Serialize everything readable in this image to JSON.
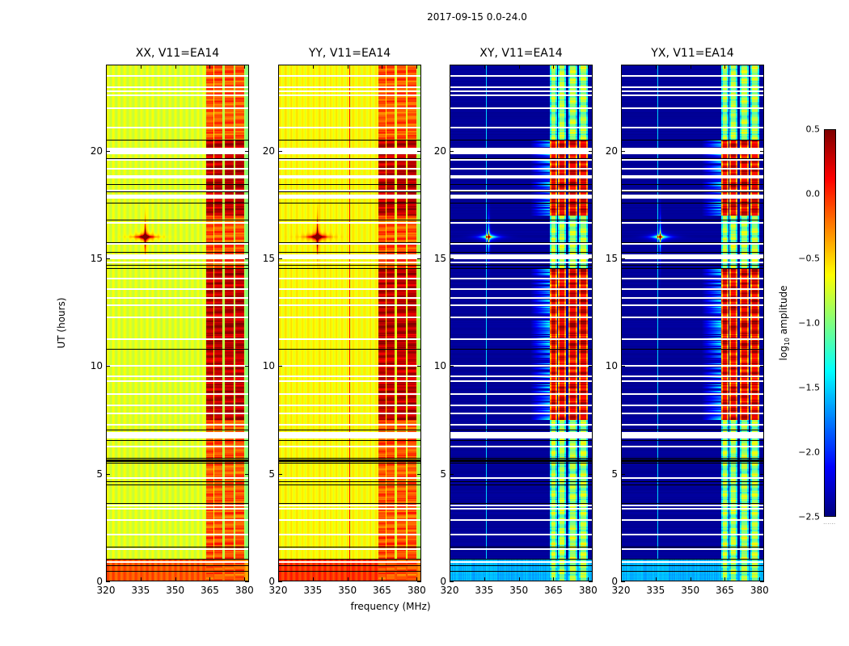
{
  "chart_data": {
    "type": "heatmap",
    "title": "2017-09-15 0.0-24.0",
    "xlabel": "frequency (MHz)",
    "ylabel": "UT (hours)",
    "xlim": [
      320,
      382
    ],
    "ylim": [
      0,
      24
    ],
    "xticks": [
      320,
      335,
      350,
      365,
      380
    ],
    "yticks": [
      0,
      5,
      10,
      15,
      20
    ],
    "colorbar": {
      "label": "log10 amplitude",
      "label_main": "log",
      "label_sub": "10",
      "label_rest": " amplitude",
      "range": [
        -2.5,
        0.5
      ],
      "ticks": [
        0.5,
        0.0,
        -0.5,
        -1.0,
        -1.5,
        -2.0,
        -2.5
      ],
      "tick_labels": [
        "0.5",
        "0.0",
        "−0.5",
        "−1.0",
        "−1.5",
        "−2.0",
        "−2.5"
      ],
      "colormap": "jet",
      "dots": "......"
    },
    "panels": [
      {
        "title": "XX, V11=EA14",
        "pol": "XX",
        "type": "parallel",
        "baseline_level": -0.75,
        "rfi_line_mhz": null
      },
      {
        "title": "YY, V11=EA14",
        "pol": "YY",
        "type": "parallel",
        "baseline_level": -0.65,
        "rfi_line_mhz": 351
      },
      {
        "title": "XY, V11=EA14",
        "pol": "XY",
        "type": "cross",
        "baseline_level": -2.45,
        "rfi_line_mhz": 336
      },
      {
        "title": "YX, V11=EA14",
        "pol": "YX",
        "type": "cross",
        "baseline_level": -2.45,
        "rfi_line_mhz": 336
      }
    ],
    "rfi_bands_mhz": [
      [
        363.5,
        366.5
      ],
      [
        366.8,
        370.5
      ],
      [
        371.5,
        375.5
      ],
      [
        376.0,
        379.8
      ]
    ],
    "strong_rfi_periods_ut": [
      [
        7.5,
        14.5
      ],
      [
        17.0,
        20.5
      ]
    ],
    "elevated_periods_ut": [
      [
        0.0,
        1.0
      ]
    ],
    "burst": {
      "freq_mhz": 337,
      "ut_hours": 16.0
    },
    "white_gap_rows_ut": [
      0.95,
      1.55,
      2.2,
      2.9,
      3.4,
      3.55,
      4.85,
      6.3,
      6.85,
      7.3,
      7.85,
      8.2,
      8.75,
      9.35,
      9.55,
      10.05,
      11.3,
      12.3,
      12.85,
      13.2,
      13.6,
      14.1,
      14.85,
      15.2,
      15.7,
      16.7,
      18.2,
      18.8,
      19.2,
      19.6,
      20.0,
      21.1,
      22.0,
      22.6,
      22.8,
      23.0,
      23.5
    ],
    "thick_white_gaps_ut": [
      [
        6.65,
        6.95
      ],
      [
        14.95,
        15.1
      ],
      [
        17.75,
        17.95
      ],
      [
        18.7,
        18.85
      ],
      [
        19.85,
        20.15
      ]
    ],
    "black_lines_ut": [
      0.5,
      0.75,
      1.05,
      1.6,
      3.65,
      4.5,
      4.65,
      5.5,
      5.65,
      5.72,
      6.55,
      7.05,
      10.8,
      14.55,
      14.7,
      15.3,
      15.75,
      16.8,
      17.6,
      18.1,
      18.45,
      19.65,
      20.5
    ]
  }
}
